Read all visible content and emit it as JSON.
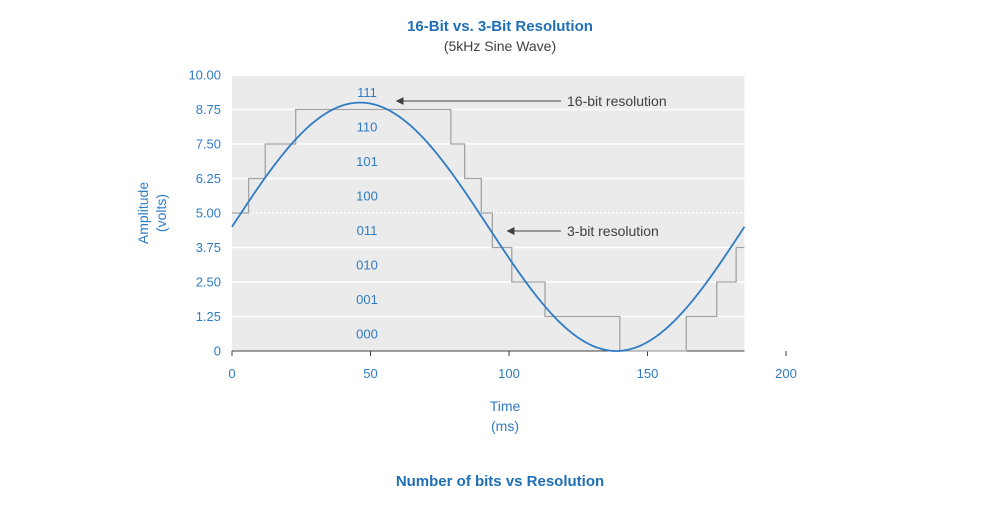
{
  "colors": {
    "accent": "#2f7bc4",
    "title": "#1f6fb5",
    "plot_bg": "#ebebeb",
    "grid": "#ffffff",
    "step": "#a3a3a3",
    "text": "#404040"
  },
  "chart_data": {
    "type": "line",
    "title": "16-Bit vs. 3-Bit Resolution",
    "subtitle": "(5kHz Sine Wave)",
    "xlabel": [
      "Time",
      "(ms)"
    ],
    "ylabel": [
      "Amplitude",
      "(volts)"
    ],
    "xlim": [
      0,
      200
    ],
    "ylim": [
      0,
      10
    ],
    "xticks": [
      "0",
      "50",
      "100",
      "150",
      "200"
    ],
    "yticks": [
      "0",
      "1.25",
      "2.50",
      "3.75",
      "5.00",
      "6.25",
      "7.50",
      "8.75",
      "10.00"
    ],
    "grid": true,
    "plot_x_max": 185,
    "level_codes": [
      "000",
      "001",
      "010",
      "011",
      "100",
      "101",
      "110",
      "111"
    ],
    "series": [
      {
        "name": "16-bit resolution",
        "kind": "sine",
        "offset": 4.5,
        "amplitude": 4.5,
        "period_ms": 185,
        "phase_ms": 0,
        "x_start": 0,
        "x_end": 185
      },
      {
        "name": "3-bit resolution",
        "kind": "step",
        "x": [
          0,
          6,
          12,
          23,
          79,
          84,
          90,
          94,
          101,
          113,
          140,
          164,
          175,
          182,
          185
        ],
        "y": [
          5.0,
          6.25,
          7.5,
          8.75,
          7.5,
          6.25,
          5.0,
          3.75,
          2.5,
          1.25,
          0,
          1.25,
          2.5,
          3.75,
          3.75
        ]
      }
    ],
    "annotations": [
      {
        "text": "16-bit resolution",
        "points_to": [
          58,
          9.0
        ]
      },
      {
        "text": "3-bit resolution",
        "points_to": [
          98,
          5.0
        ]
      }
    ]
  },
  "caption": "Number of bits vs Resolution"
}
